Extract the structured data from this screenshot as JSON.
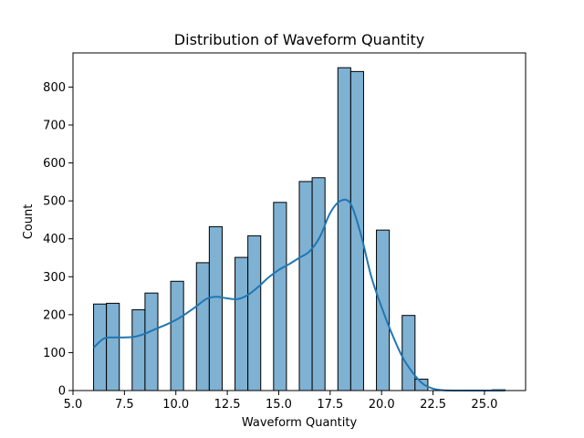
{
  "chart_data": {
    "type": "bar",
    "subtype": "histogram-with-kde",
    "title": "Distribution of Waveform Quantity",
    "xlabel": "Waveform Quantity",
    "ylabel": "Count",
    "xlim": [
      5.0,
      27.0
    ],
    "ylim": [
      0,
      890
    ],
    "xticks": [
      5.0,
      7.5,
      10.0,
      12.5,
      15.0,
      17.5,
      20.0,
      22.5,
      25.0
    ],
    "xtick_labels": [
      "5.0",
      "7.5",
      "10.0",
      "12.5",
      "15.0",
      "17.5",
      "20.0",
      "22.5",
      "25.0"
    ],
    "yticks": [
      0,
      100,
      200,
      300,
      400,
      500,
      600,
      700,
      800
    ],
    "ytick_labels": [
      "0",
      "100",
      "200",
      "300",
      "400",
      "500",
      "600",
      "700",
      "800"
    ],
    "bin_start": 6.0,
    "bin_width": 0.625,
    "counts": [
      228,
      230,
      0,
      213,
      257,
      0,
      288,
      0,
      337,
      432,
      0,
      351,
      408,
      0,
      496,
      0,
      551,
      561,
      0,
      851,
      841,
      0,
      423,
      0,
      198,
      30,
      0,
      0,
      0,
      0,
      0,
      2
    ],
    "kde": {
      "x": [
        6.0,
        6.5,
        7.0,
        7.5,
        8.0,
        8.5,
        9.0,
        9.5,
        10.0,
        10.5,
        11.0,
        11.5,
        12.0,
        12.5,
        13.0,
        13.5,
        14.0,
        14.5,
        15.0,
        15.5,
        16.0,
        16.5,
        17.0,
        17.5,
        18.0,
        18.5,
        19.0,
        19.5,
        20.0,
        20.5,
        21.0,
        21.5,
        22.0,
        22.5,
        23.0,
        24.0,
        25.0,
        26.0
      ],
      "y": [
        113,
        137,
        140,
        140,
        142,
        150,
        162,
        173,
        186,
        203,
        222,
        242,
        247,
        243,
        241,
        252,
        273,
        298,
        318,
        333,
        350,
        367,
        405,
        468,
        500,
        492,
        410,
        300,
        220,
        150,
        90,
        48,
        18,
        5,
        1,
        0,
        0,
        0
      ]
    },
    "colors": {
      "bar_fill": "#7fb1d3",
      "bar_edge": "#000000",
      "kde_line": "#1f77b4"
    },
    "grid": false,
    "legend": "none"
  }
}
